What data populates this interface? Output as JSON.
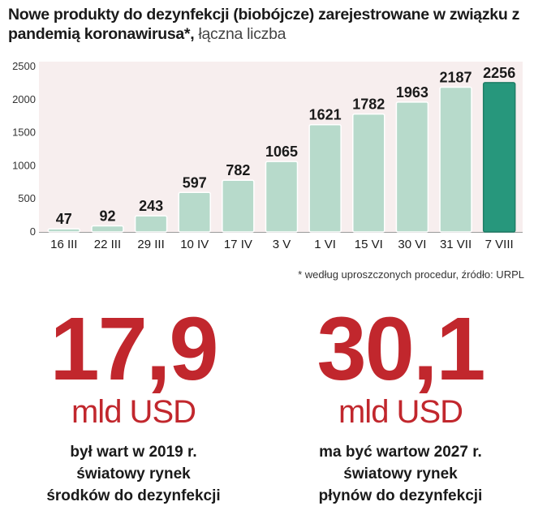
{
  "header": {
    "title_bold": "Nowe produkty do dezynfekcji  (biobójcze) zarejestrowane w związku z pandemią koronawirusa*,",
    "title_light": " łączna liczba"
  },
  "footnote": "* według uproszczonych procedur, źródło: URPL",
  "colors": {
    "bar": "#b7dacb",
    "bar_highlight": "#27977c",
    "background_band": "#f7eeee",
    "accent_red": "#c1272d"
  },
  "chart_data": {
    "type": "bar",
    "categories": [
      "16 III",
      "22 III",
      "29 III",
      "10 IV",
      "17 IV",
      "3 V",
      "1 VI",
      "15 VI",
      "30 VI",
      "31 VII",
      "7 VIII"
    ],
    "values": [
      47,
      92,
      243,
      597,
      782,
      1065,
      1621,
      1782,
      1963,
      2187,
      2256
    ],
    "ylim": [
      0,
      2500
    ],
    "yticks": [
      0,
      500,
      1000,
      1500,
      2000,
      2500
    ],
    "highlight_index": 10,
    "grid": false
  },
  "stats": [
    {
      "value": "17,9",
      "unit": "mld USD",
      "lines": [
        "był wart w 2019 r.",
        "światowy rynek",
        "środków do dezynfekcji"
      ]
    },
    {
      "value": "30,1",
      "unit": "mld USD",
      "lines": [
        "ma być wartow 2027 r.",
        "światowy rynek",
        "płynów do dezynfekcji"
      ]
    }
  ]
}
